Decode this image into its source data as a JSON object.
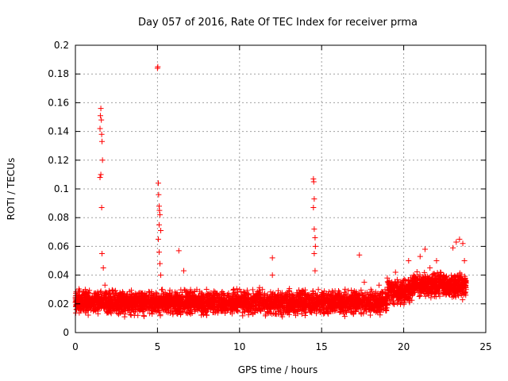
{
  "chart_data": {
    "type": "scatter",
    "title": "Day 057 of 2016, Rate Of TEC Index for receiver prma",
    "xlabel": "GPS time / hours",
    "ylabel": "ROTI / TECUs",
    "xlim": [
      0,
      25
    ],
    "ylim": [
      0,
      0.2
    ],
    "x_ticks": [
      0,
      5,
      10,
      15,
      20,
      25
    ],
    "x_tick_labels": [
      "0",
      "5",
      "10",
      "15",
      "20",
      "25"
    ],
    "y_ticks": [
      0,
      0.02,
      0.04,
      0.06,
      0.08,
      0.1,
      0.12,
      0.14,
      0.16,
      0.18,
      0.2
    ],
    "y_tick_labels": [
      "0",
      "0.02",
      "0.04",
      "0.06",
      "0.08",
      "0.1",
      "0.12",
      "0.14",
      "0.16",
      "0.18",
      "0.2"
    ],
    "grid": true,
    "marker": "+",
    "color": "#ff0000",
    "series": [
      {
        "name": "prma",
        "points": [
          [
            0.2,
            0.025
          ],
          [
            0.4,
            0.022
          ],
          [
            0.6,
            0.03
          ],
          [
            0.8,
            0.028
          ],
          [
            1.0,
            0.02
          ],
          [
            1.2,
            0.024
          ],
          [
            1.4,
            0.019
          ],
          [
            1.5,
            0.142
          ],
          [
            1.52,
            0.151
          ],
          [
            1.55,
            0.156
          ],
          [
            1.58,
            0.148
          ],
          [
            1.6,
            0.138
          ],
          [
            1.62,
            0.133
          ],
          [
            1.65,
            0.12
          ],
          [
            1.5,
            0.108
          ],
          [
            1.55,
            0.11
          ],
          [
            1.6,
            0.087
          ],
          [
            1.62,
            0.055
          ],
          [
            1.7,
            0.045
          ],
          [
            1.8,
            0.033
          ],
          [
            2.0,
            0.027
          ],
          [
            2.3,
            0.02
          ],
          [
            2.6,
            0.023
          ],
          [
            3.0,
            0.018
          ],
          [
            3.4,
            0.024
          ],
          [
            3.8,
            0.021
          ],
          [
            4.2,
            0.019
          ],
          [
            4.6,
            0.025
          ],
          [
            5.0,
            0.184
          ],
          [
            5.02,
            0.185
          ],
          [
            5.05,
            0.104
          ],
          [
            5.07,
            0.096
          ],
          [
            5.1,
            0.088
          ],
          [
            5.12,
            0.085
          ],
          [
            5.15,
            0.082
          ],
          [
            5.1,
            0.075
          ],
          [
            5.2,
            0.071
          ],
          [
            5.05,
            0.065
          ],
          [
            5.1,
            0.056
          ],
          [
            5.15,
            0.048
          ],
          [
            5.2,
            0.04
          ],
          [
            5.3,
            0.03
          ],
          [
            5.5,
            0.022
          ],
          [
            6.0,
            0.02
          ],
          [
            6.3,
            0.057
          ],
          [
            6.6,
            0.043
          ],
          [
            7.0,
            0.023
          ],
          [
            7.5,
            0.017
          ],
          [
            8.0,
            0.012
          ],
          [
            8.5,
            0.018
          ],
          [
            9.0,
            0.022
          ],
          [
            9.5,
            0.02
          ],
          [
            10.0,
            0.03
          ],
          [
            10.5,
            0.024
          ],
          [
            11.0,
            0.021
          ],
          [
            11.5,
            0.02
          ],
          [
            12.0,
            0.052
          ],
          [
            12.0,
            0.04
          ],
          [
            12.5,
            0.022
          ],
          [
            13.0,
            0.019
          ],
          [
            13.5,
            0.023
          ],
          [
            14.0,
            0.018
          ],
          [
            14.5,
            0.107
          ],
          [
            14.52,
            0.105
          ],
          [
            14.55,
            0.093
          ],
          [
            14.5,
            0.087
          ],
          [
            14.55,
            0.072
          ],
          [
            14.6,
            0.066
          ],
          [
            14.62,
            0.06
          ],
          [
            14.55,
            0.055
          ],
          [
            14.6,
            0.043
          ],
          [
            14.8,
            0.03
          ],
          [
            15.0,
            0.022
          ],
          [
            15.5,
            0.02
          ],
          [
            16.0,
            0.025
          ],
          [
            16.5,
            0.023
          ],
          [
            17.0,
            0.028
          ],
          [
            17.3,
            0.054
          ],
          [
            17.6,
            0.035
          ],
          [
            18.0,
            0.03
          ],
          [
            18.5,
            0.033
          ],
          [
            19.0,
            0.038
          ],
          [
            19.5,
            0.042
          ],
          [
            20.0,
            0.036
          ],
          [
            20.3,
            0.05
          ],
          [
            20.6,
            0.04
          ],
          [
            21.0,
            0.053
          ],
          [
            21.3,
            0.058
          ],
          [
            21.6,
            0.045
          ],
          [
            22.0,
            0.05
          ],
          [
            22.3,
            0.034
          ],
          [
            22.6,
            0.028
          ],
          [
            23.0,
            0.059
          ],
          [
            23.2,
            0.063
          ],
          [
            23.4,
            0.065
          ],
          [
            23.6,
            0.062
          ],
          [
            23.7,
            0.05
          ],
          [
            23.8,
            0.03
          ]
        ],
        "baseline_band": {
          "x_range": [
            0.0,
            23.8
          ],
          "y_center": 0.021,
          "y_spread": 0.011,
          "density_per_hour": 180
        }
      }
    ]
  }
}
